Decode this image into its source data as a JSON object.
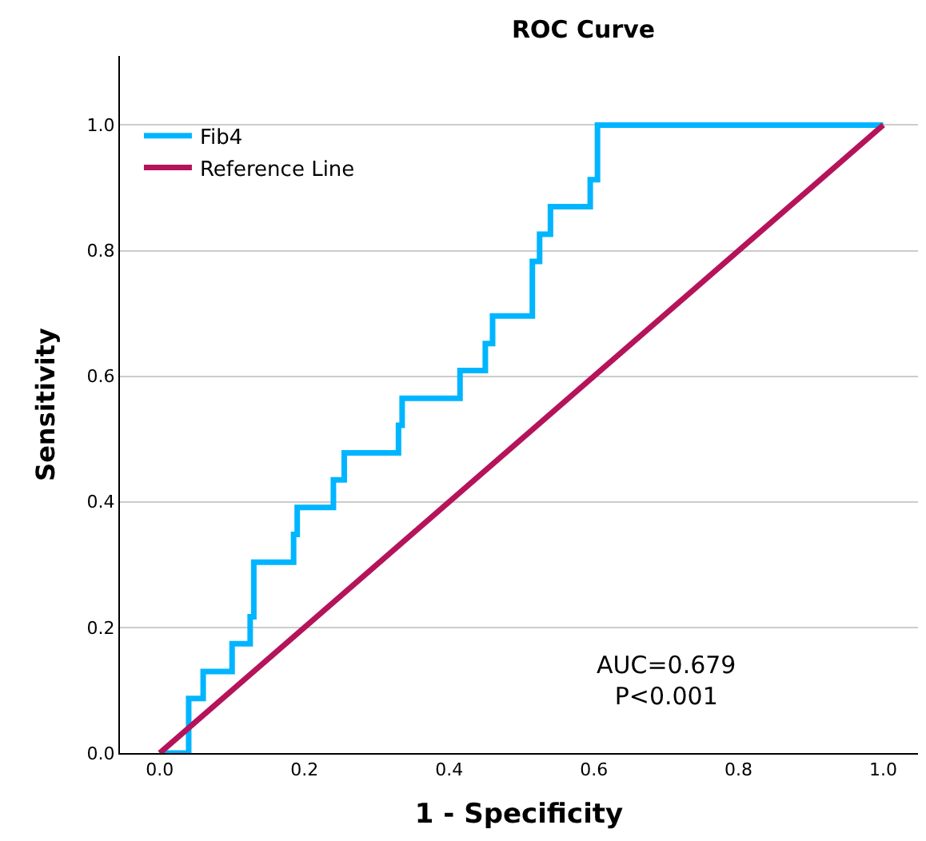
{
  "chart_data": {
    "type": "step",
    "title": "ROC Curve",
    "xlabel": "1 - Specificity",
    "ylabel": "Sensitivity",
    "xlim": [
      -0.055,
      1.048
    ],
    "ylim": [
      0,
      1.11
    ],
    "xticks": [
      {
        "value": 0,
        "label": "0.0"
      },
      {
        "value": 0.2,
        "label": "0.2"
      },
      {
        "value": 0.4,
        "label": "0.4"
      },
      {
        "value": 0.6,
        "label": "0.6"
      },
      {
        "value": 0.8,
        "label": "0.8"
      },
      {
        "value": 1,
        "label": "1.0"
      }
    ],
    "yticks": [
      {
        "value": 0,
        "label": "0.0"
      },
      {
        "value": 0.2,
        "label": "0.2"
      },
      {
        "value": 0.4,
        "label": "0.4"
      },
      {
        "value": 0.6,
        "label": "0.6"
      },
      {
        "value": 0.8,
        "label": "0.8"
      },
      {
        "value": 1,
        "label": "1.0"
      }
    ],
    "grid": "y",
    "legend": "top left",
    "marker": "none",
    "line_style": "solid",
    "series": [
      {
        "name": "Fib4",
        "color": "#00b5ff",
        "x": [
          0,
          0.04,
          0.06,
          0.1,
          0.125,
          0.13,
          0.185,
          0.19,
          0.24,
          0.255,
          0.33,
          0.335,
          0.415,
          0.45,
          0.46,
          0.515,
          0.525,
          0.54,
          0.595,
          0.605,
          1
        ],
        "values": [
          0,
          0.087,
          0.13,
          0.174,
          0.217,
          0.304,
          0.348,
          0.391,
          0.435,
          0.478,
          0.522,
          0.565,
          0.609,
          0.652,
          0.696,
          0.783,
          0.826,
          0.87,
          0.913,
          1.0,
          1.0
        ]
      },
      {
        "name": "Reference Line",
        "type": "line",
        "color": "#b5135a",
        "x": [
          0,
          1
        ],
        "values": [
          0,
          1
        ]
      }
    ],
    "annotations": [
      "AUC=0.679\nP<0.001"
    ]
  }
}
